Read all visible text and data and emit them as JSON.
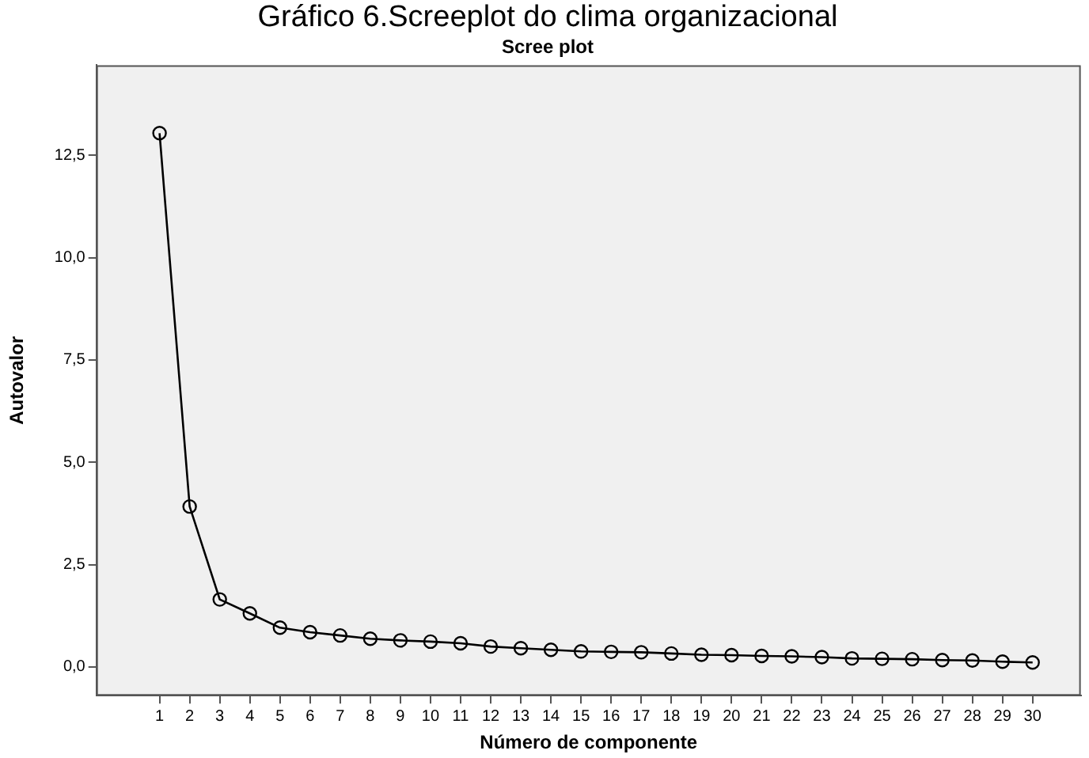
{
  "chart_data": {
    "type": "line",
    "title": "Gráfico 6.Screeplot do clima organizacional",
    "subtitle": "Scree plot",
    "xlabel": "Número de componente",
    "ylabel": "Autovalor",
    "x": [
      1,
      2,
      3,
      4,
      5,
      6,
      7,
      8,
      9,
      10,
      11,
      12,
      13,
      14,
      15,
      16,
      17,
      18,
      19,
      20,
      21,
      22,
      23,
      24,
      25,
      26,
      27,
      28,
      29,
      30
    ],
    "series": [
      {
        "color": "#000000",
        "values": [
          13.04,
          3.92,
          1.65,
          1.31,
          0.96,
          0.85,
          0.77,
          0.69,
          0.65,
          0.62,
          0.58,
          0.5,
          0.46,
          0.42,
          0.38,
          0.37,
          0.36,
          0.33,
          0.3,
          0.29,
          0.27,
          0.26,
          0.24,
          0.21,
          0.2,
          0.19,
          0.17,
          0.16,
          0.13,
          0.11
        ]
      }
    ],
    "xlim": [
      -1.1,
      31.6
    ],
    "xticks": [
      1,
      2,
      3,
      4,
      5,
      6,
      7,
      8,
      9,
      10,
      11,
      12,
      13,
      14,
      15,
      16,
      17,
      18,
      19,
      20,
      21,
      22,
      23,
      24,
      25,
      26,
      27,
      28,
      29,
      30
    ],
    "ylim": [
      -0.7,
      14.7
    ],
    "yticks": [
      {
        "value": 0,
        "label": "0,0"
      },
      {
        "value": 2.5,
        "label": "2,5"
      },
      {
        "value": 5,
        "label": "5,0"
      },
      {
        "value": 7.5,
        "label": "7,5"
      },
      {
        "value": 10,
        "label": "10,0"
      },
      {
        "value": 12.5,
        "label": "12,5"
      }
    ],
    "grid": false,
    "legend": false,
    "marker": "circle",
    "line_style": "solid"
  }
}
